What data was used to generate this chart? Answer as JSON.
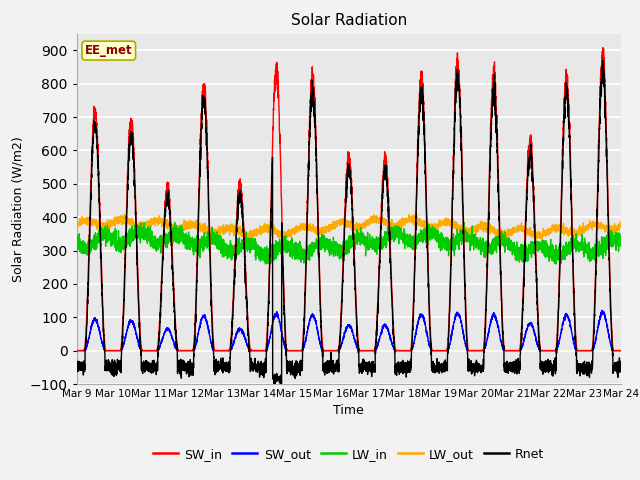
{
  "title": "Solar Radiation",
  "ylabel": "Solar Radiation (W/m2)",
  "xlabel": "Time",
  "ylim": [
    -100,
    950
  ],
  "xlim": [
    0,
    15
  ],
  "xtick_labels": [
    "Mar 9",
    "Mar 10",
    "Mar 11",
    "Mar 12",
    "Mar 13",
    "Mar 14",
    "Mar 15",
    "Mar 16",
    "Mar 17",
    "Mar 18",
    "Mar 19",
    "Mar 20",
    "Mar 21",
    "Mar 22",
    "Mar 23",
    "Mar 24"
  ],
  "legend_labels": [
    "SW_in",
    "SW_out",
    "LW_in",
    "LW_out",
    "Rnet"
  ],
  "legend_colors": [
    "#ff0000",
    "#0000ff",
    "#00cc00",
    "#ffaa00",
    "#000000"
  ],
  "station_label": "EE_met",
  "plot_bg_color": "#e8e8e8",
  "fig_bg_color": "#f2f2f2",
  "grid_color": "#ffffff",
  "n_days": 15,
  "pts_per_day": 288,
  "day_peaks_SW": [
    720,
    690,
    490,
    800,
    500,
    840,
    820,
    580,
    580,
    820,
    860,
    820,
    630,
    820,
    880
  ],
  "LW_out_base": 370,
  "LW_in_base": 320
}
